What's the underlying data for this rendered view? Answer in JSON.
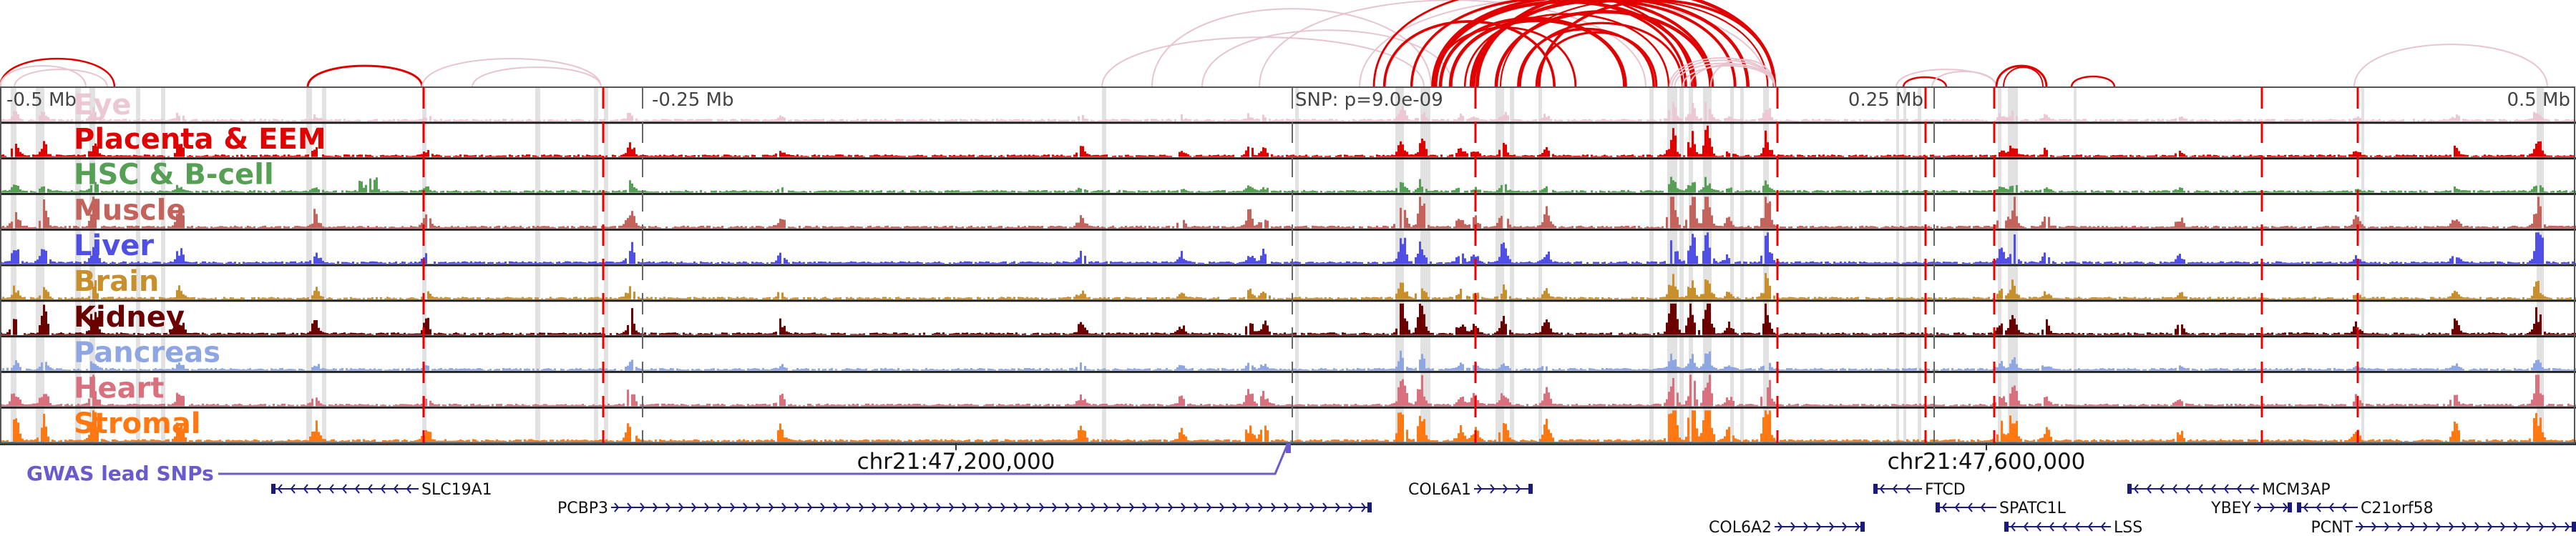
{
  "tracks": [
    {
      "name": "Eye",
      "color": "#ecc8d4"
    },
    {
      "name": "Placenta & EEM",
      "color": "#e00000"
    },
    {
      "name": "HSC & B-cell",
      "color": "#55a055"
    },
    {
      "name": "Muscle",
      "color": "#c4625c"
    },
    {
      "name": "Liver",
      "color": "#4f4fe6"
    },
    {
      "name": "Brain",
      "color": "#c8902c"
    },
    {
      "name": "Kidney",
      "color": "#6a0000"
    },
    {
      "name": "Pancreas",
      "color": "#8ea6e2"
    },
    {
      "name": "Heart",
      "color": "#d8707e"
    },
    {
      "name": "Stromal",
      "color": "#ff7812"
    }
  ],
  "axis": {
    "left_far": "-0.5 Mb",
    "left_near": "-0.25 Mb",
    "snp": "SNP: p=9.0e-09",
    "right_near": "0.25 Mb",
    "right_far": "0.5 Mb"
  },
  "coords": {
    "left": "chr21:47,200,000",
    "right": "chr21:47,600,000"
  },
  "gwas_label": "GWAS lead SNPs",
  "genes": [
    {
      "name": "SLC19A1",
      "strand": "-"
    },
    {
      "name": "PCBP3",
      "strand": "+"
    },
    {
      "name": "COL6A1",
      "strand": "+"
    },
    {
      "name": "COL6A2",
      "strand": "+"
    },
    {
      "name": "FTCD",
      "strand": "-"
    },
    {
      "name": "SPATC1L",
      "strand": "-"
    },
    {
      "name": "LSS",
      "strand": "-"
    },
    {
      "name": "MCM3AP",
      "strand": "-"
    },
    {
      "name": "YBEY",
      "strand": "+"
    },
    {
      "name": "C21orf58",
      "strand": "-"
    },
    {
      "name": "PCNT",
      "strand": "+"
    }
  ],
  "colors": {
    "arc_strong": "#e00000",
    "arc_faint": "#e8c4cf",
    "dash": "#ee0000",
    "band": "#e2e2e2",
    "gene": "#1a1a7a"
  }
}
